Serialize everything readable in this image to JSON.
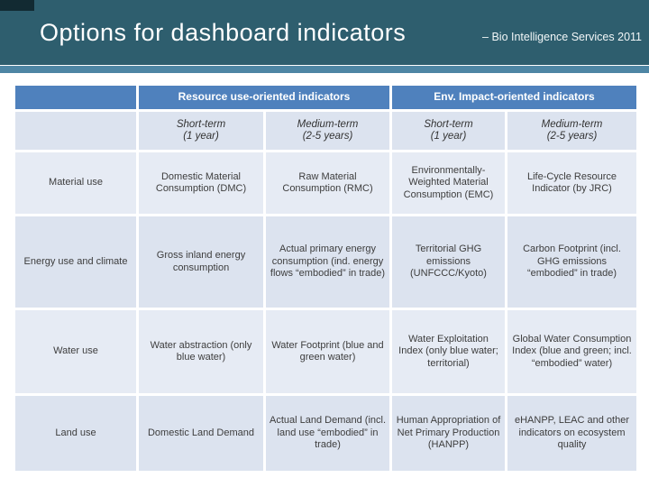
{
  "slide": {
    "title": "Options for dashboard indicators",
    "subtitle": "– Bio Intelligence Services 2011"
  },
  "table": {
    "group_headers": [
      "Resource use-oriented indicators",
      "Env. Impact-oriented indicators"
    ],
    "column_headers": [
      {
        "line1": "Short-term",
        "line2": "(1 year)"
      },
      {
        "line1": "Medium-term",
        "line2": "(2-5 years)"
      },
      {
        "line1": "Short-term",
        "line2": "(1 year)"
      },
      {
        "line1": "Medium-term",
        "line2": "(2-5 years)"
      }
    ],
    "rows": [
      {
        "label": "Material use",
        "cells": [
          "Domestic Material Consumption (DMC)",
          "Raw Material Consumption (RMC)",
          "Environmentally-Weighted Material Consumption (EMC)",
          "Life-Cycle Resource Indicator (by JRC)"
        ]
      },
      {
        "label": "Energy use and climate",
        "cells": [
          "Gross inland energy consumption",
          "Actual primary energy consumption (ind. energy flows “embodied” in trade)",
          "Territorial GHG emissions (UNFCCC/Kyoto)",
          "Carbon Footprint (incl. GHG emissions “embodied” in trade)"
        ]
      },
      {
        "label": "Water use",
        "cells": [
          "Water abstraction (only blue water)",
          "Water Footprint (blue and green water)",
          "Water Exploitation Index (only blue water; territorial)",
          "Global Water Consumption Index (blue and green; incl. “embodied” water)"
        ]
      },
      {
        "label": "Land use",
        "cells": [
          "Domestic Land Demand",
          "Actual Land Demand (incl. land use “embodied” in trade)",
          "Human Appropriation of Net Primary Production (HANPP)",
          "eHANPP, LEAC and other indicators on ecosystem quality"
        ]
      }
    ]
  },
  "colors": {
    "banner_bg": "#2E5E6E",
    "corner_tab": "#122A32",
    "stripe": "#4E86A4",
    "table_header_bg": "#4F81BD",
    "table_header_text": "#FFFFFF",
    "subheader_row_bg": "#DCE3EF",
    "row_bg_light": "#E6EBF4",
    "row_bg_dark": "#DCE3EF",
    "body_text": "#3D3D3D"
  }
}
